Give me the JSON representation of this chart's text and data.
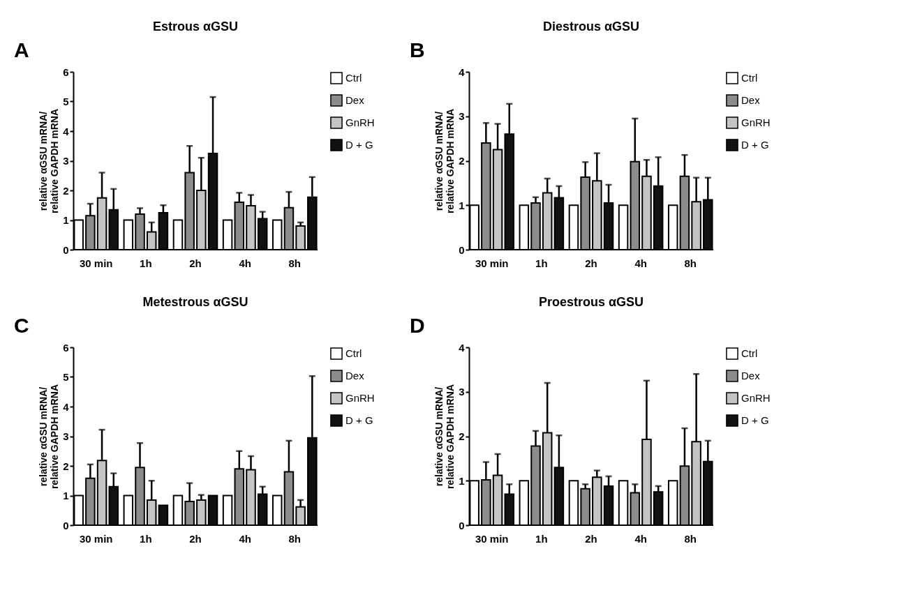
{
  "chart_data": [
    {
      "type": "bar",
      "title": "Estrous αGSU",
      "ylabel": "relative αGSU mRNA/\nrelative GAPDH mRNA",
      "annotations": [
        "A"
      ],
      "categories": [
        "30 min",
        "1h",
        "2h",
        "4h",
        "8h"
      ],
      "ylim": [
        0,
        6
      ],
      "yticks": [
        0,
        1,
        2,
        3,
        4,
        5,
        6
      ],
      "grid": false,
      "legend": "right",
      "series": [
        {
          "name": "Ctrl",
          "color": "#ffffff",
          "values": [
            1,
            1,
            1,
            1,
            1
          ]
        },
        {
          "name": "Dex",
          "color": "#8c8c8c",
          "values": [
            1.15,
            1.2,
            2.6,
            1.6,
            1.42
          ],
          "errors": [
            [
              1.15,
              1.55
            ],
            [
              1.2,
              1.4
            ],
            [
              2.6,
              3.5
            ],
            [
              1.6,
              1.92
            ],
            [
              1.42,
              1.95
            ]
          ]
        },
        {
          "name": "GnRH",
          "color": "#c4c4c4",
          "values": [
            1.75,
            0.6,
            2.0,
            1.48,
            0.8
          ],
          "errors": [
            [
              1.75,
              2.6
            ],
            [
              0.6,
              0.92
            ],
            [
              2.0,
              3.1
            ],
            [
              1.48,
              1.85
            ],
            [
              0.8,
              0.92
            ]
          ]
        },
        {
          "name": "D + G",
          "color": "#111111",
          "values": [
            1.35,
            1.25,
            3.25,
            1.05,
            1.77
          ],
          "errors": [
            [
              1.35,
              2.05
            ],
            [
              1.25,
              1.5
            ],
            [
              3.25,
              5.15
            ],
            [
              1.05,
              1.28
            ],
            [
              1.77,
              2.45
            ]
          ]
        }
      ]
    },
    {
      "type": "bar",
      "title": "Diestrous αGSU",
      "ylabel": "relative αGSU mRNA/\nrelative GAPDH mRNA",
      "annotations": [
        "B"
      ],
      "categories": [
        "30 min",
        "1h",
        "2h",
        "4h",
        "8h"
      ],
      "ylim": [
        0,
        4
      ],
      "yticks": [
        0,
        1,
        2,
        3,
        4
      ],
      "grid": false,
      "legend": "right",
      "series": [
        {
          "name": "Ctrl",
          "color": "#ffffff",
          "values": [
            1,
            1,
            1,
            1,
            1
          ]
        },
        {
          "name": "Dex",
          "color": "#8c8c8c",
          "values": [
            2.4,
            1.05,
            1.63,
            1.98,
            1.65
          ],
          "errors": [
            [
              2.4,
              2.85
            ],
            [
              1.05,
              1.18
            ],
            [
              1.63,
              1.97
            ],
            [
              1.98,
              2.95
            ],
            [
              1.65,
              2.13
            ]
          ]
        },
        {
          "name": "GnRH",
          "color": "#c4c4c4",
          "values": [
            2.25,
            1.28,
            1.55,
            1.65,
            1.08
          ],
          "errors": [
            [
              2.25,
              2.83
            ],
            [
              1.28,
              1.6
            ],
            [
              1.55,
              2.17
            ],
            [
              1.65,
              2.02
            ],
            [
              1.08,
              1.62
            ]
          ]
        },
        {
          "name": "D + G",
          "color": "#111111",
          "values": [
            2.6,
            1.17,
            1.05,
            1.43,
            1.12
          ],
          "errors": [
            [
              2.6,
              3.28
            ],
            [
              1.17,
              1.43
            ],
            [
              1.05,
              1.46
            ],
            [
              1.43,
              2.08
            ],
            [
              1.12,
              1.62
            ]
          ]
        }
      ]
    },
    {
      "type": "bar",
      "title": "Metestrous αGSU",
      "ylabel": "relative αGSU mRNA/\nrelative GAPDH mRNA",
      "annotations": [
        "C"
      ],
      "categories": [
        "30 min",
        "1h",
        "2h",
        "4h",
        "8h"
      ],
      "ylim": [
        0,
        6
      ],
      "yticks": [
        0,
        1,
        2,
        3,
        4,
        5,
        6
      ],
      "grid": false,
      "legend": "right",
      "series": [
        {
          "name": "Ctrl",
          "color": "#ffffff",
          "values": [
            1,
            1,
            1,
            1,
            1
          ]
        },
        {
          "name": "Dex",
          "color": "#8c8c8c",
          "values": [
            1.58,
            1.95,
            0.8,
            1.9,
            1.8
          ],
          "errors": [
            [
              1.58,
              2.05
            ],
            [
              1.95,
              2.77
            ],
            [
              0.8,
              1.42
            ],
            [
              1.9,
              2.5
            ],
            [
              1.8,
              2.85
            ]
          ]
        },
        {
          "name": "GnRH",
          "color": "#c4c4c4",
          "values": [
            2.18,
            0.85,
            0.85,
            1.87,
            0.62
          ],
          "errors": [
            [
              2.18,
              3.22
            ],
            [
              0.85,
              1.5
            ],
            [
              0.85,
              1.02
            ],
            [
              1.87,
              2.33
            ],
            [
              0.62,
              0.85
            ]
          ]
        },
        {
          "name": "D + G",
          "color": "#111111",
          "values": [
            1.3,
            0.67,
            1.0,
            1.05,
            2.95
          ],
          "errors": [
            [
              1.3,
              1.75
            ],
            null,
            null,
            [
              1.05,
              1.3
            ],
            [
              2.95,
              5.03
            ]
          ]
        }
      ]
    },
    {
      "type": "bar",
      "title": "Proestrous αGSU",
      "ylabel": "relative αGSU mRNA/\nrelative GAPDH mRNA",
      "annotations": [
        "D"
      ],
      "categories": [
        "30 min",
        "1h",
        "2h",
        "4h",
        "8h"
      ],
      "ylim": [
        0,
        4
      ],
      "yticks": [
        0,
        1,
        2,
        3,
        4
      ],
      "grid": false,
      "legend": "right",
      "series": [
        {
          "name": "Ctrl",
          "color": "#ffffff",
          "values": [
            1,
            1,
            1,
            1,
            1
          ]
        },
        {
          "name": "Dex",
          "color": "#8c8c8c",
          "values": [
            1.02,
            1.78,
            0.82,
            0.73,
            1.33
          ],
          "errors": [
            [
              1.02,
              1.42
            ],
            [
              1.78,
              2.12
            ],
            [
              0.82,
              0.92
            ],
            [
              0.73,
              0.92
            ],
            [
              1.33,
              2.18
            ]
          ]
        },
        {
          "name": "GnRH",
          "color": "#c4c4c4",
          "values": [
            1.12,
            2.08,
            1.08,
            1.93,
            1.88
          ],
          "errors": [
            [
              1.12,
              1.6
            ],
            [
              2.08,
              3.2
            ],
            [
              1.08,
              1.23
            ],
            [
              1.93,
              3.25
            ],
            [
              1.88,
              3.4
            ]
          ]
        },
        {
          "name": "D + G",
          "color": "#111111",
          "values": [
            0.7,
            1.3,
            0.88,
            0.75,
            1.43
          ],
          "errors": [
            [
              0.7,
              0.92
            ],
            [
              1.3,
              2.02
            ],
            [
              0.88,
              1.1
            ],
            [
              0.75,
              0.88
            ],
            [
              1.43,
              1.9
            ]
          ]
        }
      ]
    }
  ]
}
